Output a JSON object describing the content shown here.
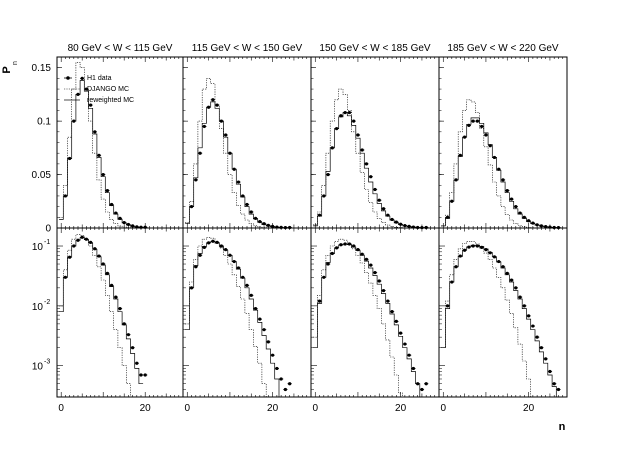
{
  "figure": {
    "y_axis_label": "P",
    "y_axis_label_sub": "n",
    "x_axis_label": "n",
    "legend": {
      "data": "H1 data",
      "django": "DJANGO MC",
      "reweighted": "reweighted MC"
    }
  },
  "chart_data": {
    "type": "line",
    "description_free": true,
    "panel_titles": [
      "80 GeV < W < 115 GeV",
      "115 GeV < W < 150 GeV",
      "150 GeV < W < 185 GeV",
      "185 GeV < W < 220 GeV"
    ],
    "x_ticks": [
      0,
      20
    ],
    "linear_row": {
      "ylim": [
        0,
        0.16
      ],
      "y_ticks": [
        0,
        0.05,
        0.1,
        0.15
      ],
      "y_tick_labels": [
        "0",
        "0.05",
        "0.1",
        "0.15"
      ]
    },
    "log_row": {
      "ylim": [
        0.0003,
        0.2
      ],
      "y_ticks": [
        0.1,
        0.01,
        0.001
      ],
      "y_tick_labels": [
        [
          "10",
          "-1"
        ],
        [
          "10",
          "-2"
        ],
        [
          "10",
          "-3"
        ]
      ]
    },
    "xlim": [
      -1,
      29
    ],
    "panels": [
      {
        "title": "80 GeV < W < 115 GeV",
        "data": {
          "x": [
            1,
            2,
            3,
            4,
            5,
            6,
            7,
            8,
            9,
            10,
            11,
            12,
            13,
            14,
            15,
            16,
            17,
            18,
            19,
            20
          ],
          "y": [
            0.03,
            0.065,
            0.1,
            0.125,
            0.14,
            0.13,
            0.115,
            0.09,
            0.068,
            0.05,
            0.035,
            0.022,
            0.014,
            0.009,
            0.005,
            0.0033,
            0.002,
            0.0011,
            0.0007,
            0.0007
          ]
        },
        "django": {
          "x": [
            0,
            1,
            2,
            3,
            4,
            5,
            6,
            7,
            8,
            9,
            10,
            11,
            12,
            13,
            14,
            15,
            16,
            17,
            18
          ],
          "y": [
            0.01,
            0.04,
            0.085,
            0.13,
            0.155,
            0.15,
            0.13,
            0.1,
            0.07,
            0.045,
            0.027,
            0.015,
            0.008,
            0.004,
            0.002,
            0.001,
            0.0005,
            0.00025,
            0.0001
          ]
        },
        "reweighted": {
          "x": [
            0,
            1,
            2,
            3,
            4,
            5,
            6,
            7,
            8,
            9,
            10,
            11,
            12,
            13,
            14,
            15,
            16,
            17,
            18,
            19
          ],
          "y": [
            0.008,
            0.03,
            0.065,
            0.1,
            0.125,
            0.138,
            0.128,
            0.112,
            0.088,
            0.066,
            0.048,
            0.033,
            0.021,
            0.013,
            0.008,
            0.0048,
            0.0028,
            0.0016,
            0.0009,
            0.0005
          ]
        }
      },
      {
        "title": "115 GeV < W < 150 GeV",
        "data": {
          "x": [
            1,
            2,
            3,
            4,
            5,
            6,
            7,
            8,
            9,
            10,
            11,
            12,
            13,
            14,
            15,
            16,
            17,
            18,
            19,
            20,
            21,
            22,
            23,
            24
          ],
          "y": [
            0.02,
            0.045,
            0.07,
            0.095,
            0.113,
            0.12,
            0.115,
            0.1,
            0.087,
            0.07,
            0.055,
            0.043,
            0.03,
            0.022,
            0.015,
            0.009,
            0.006,
            0.004,
            0.0025,
            0.0015,
            0.0009,
            0.0006,
            0.0004,
            0.0005
          ]
        },
        "django": {
          "x": [
            0,
            1,
            2,
            3,
            4,
            5,
            6,
            7,
            8,
            9,
            10,
            11,
            12,
            13,
            14,
            15,
            16,
            17,
            18,
            19,
            20,
            21
          ],
          "y": [
            0.005,
            0.025,
            0.06,
            0.1,
            0.13,
            0.14,
            0.135,
            0.115,
            0.093,
            0.07,
            0.05,
            0.033,
            0.021,
            0.013,
            0.0075,
            0.004,
            0.0021,
            0.0011,
            0.0005,
            0.00025,
            0.0001,
            5e-05
          ]
        },
        "reweighted": {
          "x": [
            0,
            1,
            2,
            3,
            4,
            5,
            6,
            7,
            8,
            9,
            10,
            11,
            12,
            13,
            14,
            15,
            16,
            17,
            18,
            19,
            20,
            21,
            22
          ],
          "y": [
            0.004,
            0.02,
            0.047,
            0.075,
            0.098,
            0.113,
            0.118,
            0.112,
            0.1,
            0.085,
            0.07,
            0.055,
            0.041,
            0.029,
            0.02,
            0.013,
            0.0085,
            0.0053,
            0.0032,
            0.0019,
            0.0011,
            0.0006,
            0.0003
          ]
        }
      },
      {
        "title": "150 GeV < W < 185 GeV",
        "data": {
          "x": [
            1,
            2,
            3,
            4,
            5,
            6,
            7,
            8,
            9,
            10,
            11,
            12,
            13,
            14,
            15,
            16,
            17,
            18,
            19,
            20,
            21,
            22,
            23,
            24,
            25,
            26
          ],
          "y": [
            0.012,
            0.03,
            0.05,
            0.075,
            0.093,
            0.105,
            0.108,
            0.108,
            0.1,
            0.087,
            0.073,
            0.06,
            0.048,
            0.036,
            0.026,
            0.018,
            0.012,
            0.008,
            0.0055,
            0.0035,
            0.0023,
            0.0015,
            0.0009,
            0.0005,
            0.0004,
            0.0005
          ]
        },
        "django": {
          "x": [
            0,
            1,
            2,
            3,
            4,
            5,
            6,
            7,
            8,
            9,
            10,
            11,
            12,
            13,
            14,
            15,
            16,
            17,
            18,
            19,
            20,
            21,
            22,
            23
          ],
          "y": [
            0.003,
            0.015,
            0.04,
            0.07,
            0.1,
            0.12,
            0.13,
            0.125,
            0.11,
            0.09,
            0.07,
            0.052,
            0.036,
            0.024,
            0.015,
            0.009,
            0.005,
            0.0027,
            0.0014,
            0.0007,
            0.00035,
            0.00018,
            9e-05,
            5e-05
          ]
        },
        "reweighted": {
          "x": [
            0,
            1,
            2,
            3,
            4,
            5,
            6,
            7,
            8,
            9,
            10,
            11,
            12,
            13,
            14,
            15,
            16,
            17,
            18,
            19,
            20,
            21,
            22,
            23,
            24,
            25
          ],
          "y": [
            0.002,
            0.011,
            0.03,
            0.053,
            0.075,
            0.093,
            0.104,
            0.108,
            0.105,
            0.096,
            0.084,
            0.07,
            0.056,
            0.043,
            0.032,
            0.023,
            0.016,
            0.011,
            0.0073,
            0.0048,
            0.0031,
            0.002,
            0.0013,
            0.0008,
            0.0005,
            0.0003
          ]
        }
      },
      {
        "title": "185 GeV < W < 220 GeV",
        "data": {
          "x": [
            1,
            2,
            3,
            4,
            5,
            6,
            7,
            8,
            9,
            10,
            11,
            12,
            13,
            14,
            15,
            16,
            17,
            18,
            19,
            20,
            21,
            22,
            23,
            24,
            25,
            26,
            27
          ],
          "y": [
            0.01,
            0.025,
            0.045,
            0.068,
            0.085,
            0.096,
            0.1,
            0.1,
            0.095,
            0.087,
            0.077,
            0.066,
            0.055,
            0.045,
            0.035,
            0.027,
            0.02,
            0.014,
            0.01,
            0.0068,
            0.0046,
            0.003,
            0.002,
            0.0013,
            0.0008,
            0.0005,
            0.0004
          ]
        },
        "django": {
          "x": [
            0,
            1,
            2,
            3,
            4,
            5,
            6,
            7,
            8,
            9,
            10,
            11,
            12,
            13,
            14,
            15,
            16,
            17,
            18,
            19,
            20,
            21,
            22,
            23,
            24
          ],
          "y": [
            0.002,
            0.012,
            0.033,
            0.06,
            0.09,
            0.11,
            0.12,
            0.118,
            0.108,
            0.093,
            0.076,
            0.059,
            0.043,
            0.03,
            0.02,
            0.0125,
            0.0075,
            0.0043,
            0.0023,
            0.0012,
            0.0006,
            0.0003,
            0.00015,
            8e-05,
            4e-05
          ]
        },
        "reweighted": {
          "x": [
            0,
            1,
            2,
            3,
            4,
            5,
            6,
            7,
            8,
            9,
            10,
            11,
            12,
            13,
            14,
            15,
            16,
            17,
            18,
            19,
            20,
            21,
            22,
            23,
            24,
            25,
            26,
            27
          ],
          "y": [
            0.002,
            0.009,
            0.025,
            0.045,
            0.067,
            0.085,
            0.097,
            0.103,
            0.103,
            0.098,
            0.089,
            0.078,
            0.066,
            0.054,
            0.043,
            0.033,
            0.025,
            0.018,
            0.013,
            0.009,
            0.006,
            0.004,
            0.0026,
            0.0017,
            0.0011,
            0.0007,
            0.00045,
            0.0003
          ]
        }
      }
    ]
  }
}
